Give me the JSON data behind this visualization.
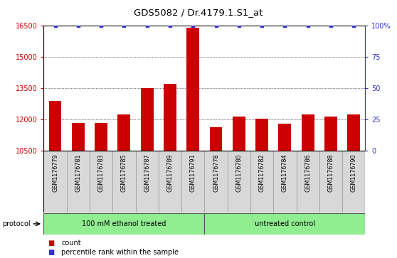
{
  "title": "GDS5082 / Dr.4179.1.S1_at",
  "samples": [
    "GSM1176779",
    "GSM1176781",
    "GSM1176783",
    "GSM1176785",
    "GSM1176787",
    "GSM1176789",
    "GSM1176791",
    "GSM1176778",
    "GSM1176780",
    "GSM1176782",
    "GSM1176784",
    "GSM1176786",
    "GSM1176788",
    "GSM1176790"
  ],
  "counts": [
    12900,
    11850,
    11850,
    12250,
    13500,
    13700,
    16400,
    11650,
    12150,
    12050,
    11800,
    12250,
    12150,
    12250
  ],
  "percentiles": [
    100,
    100,
    100,
    100,
    100,
    100,
    100,
    100,
    100,
    100,
    100,
    100,
    100,
    100
  ],
  "groups": [
    {
      "label": "100 mM ethanol treated",
      "start": 0,
      "end": 7,
      "color": "#90EE90"
    },
    {
      "label": "untreated control",
      "start": 7,
      "end": 14,
      "color": "#90EE90"
    }
  ],
  "bar_color": "#CC0000",
  "dot_color": "#3333CC",
  "ylim_left": [
    10500,
    16500
  ],
  "ylim_right": [
    0,
    100
  ],
  "yticks_left": [
    10500,
    12000,
    13500,
    15000,
    16500
  ],
  "yticks_right": [
    0,
    25,
    50,
    75,
    100
  ],
  "ytick_labels_right": [
    "0",
    "25",
    "50",
    "75",
    "100%"
  ],
  "grid_values": [
    12000,
    13500,
    15000
  ],
  "left_axis_color": "#CC0000",
  "right_axis_color": "#3333CC",
  "protocol_label": "protocol",
  "legend_count_label": "count",
  "legend_percentile_label": "percentile rank within the sample",
  "bg_plot": "#ffffff",
  "bg_xlabel": "#d8d8d8"
}
